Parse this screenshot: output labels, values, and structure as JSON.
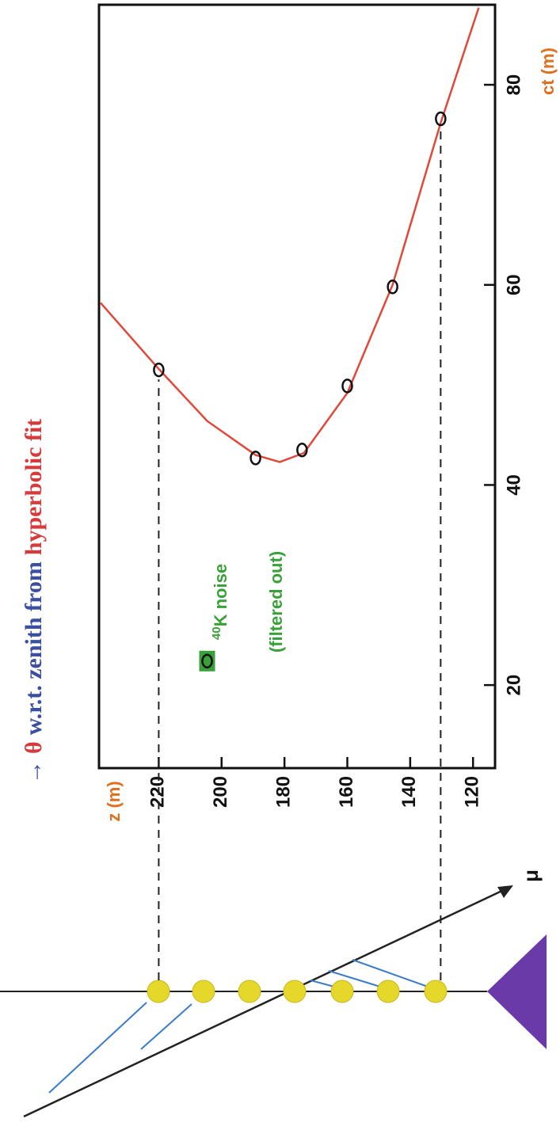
{
  "chart_data": {
    "type": "scatter",
    "title_segments": [
      "→",
      "θ",
      "w.r.t. zenith from",
      "hyperbolic fit"
    ],
    "title_colors": [
      "#3a4fa0",
      "#d63a3a",
      "#3a4fa0",
      "#d63a3a"
    ],
    "xlabel": "ct (m)",
    "ylabel": "z (m)",
    "xlim": [
      11.7,
      88
    ],
    "ylim": [
      113,
      239
    ],
    "xticks": [
      20,
      40,
      60,
      80
    ],
    "yticks": [
      120,
      140,
      160,
      180,
      200,
      220
    ],
    "points": {
      "x": [
        51.5,
        42.7,
        43.5,
        49.9,
        59.8,
        76.6
      ],
      "y": [
        220,
        189.2,
        174.4,
        160,
        145.6,
        130.3
      ]
    },
    "noise_point": {
      "x": [
        22.4
      ],
      "y": [
        204.6
      ]
    },
    "fit": {
      "color": "#e0483a",
      "x": [
        58.2,
        51.6,
        46.4,
        43.0,
        42.3,
        43.2,
        49.2,
        60.0,
        76.2,
        87.7
      ],
      "y": [
        238.5,
        220,
        204.6,
        189.2,
        181.5,
        173.8,
        160,
        145.6,
        130.3,
        118.2
      ]
    },
    "annotation_sup": "40",
    "annotation": "K noise",
    "annotation2": "(filtered out)",
    "track_label": "μ"
  }
}
